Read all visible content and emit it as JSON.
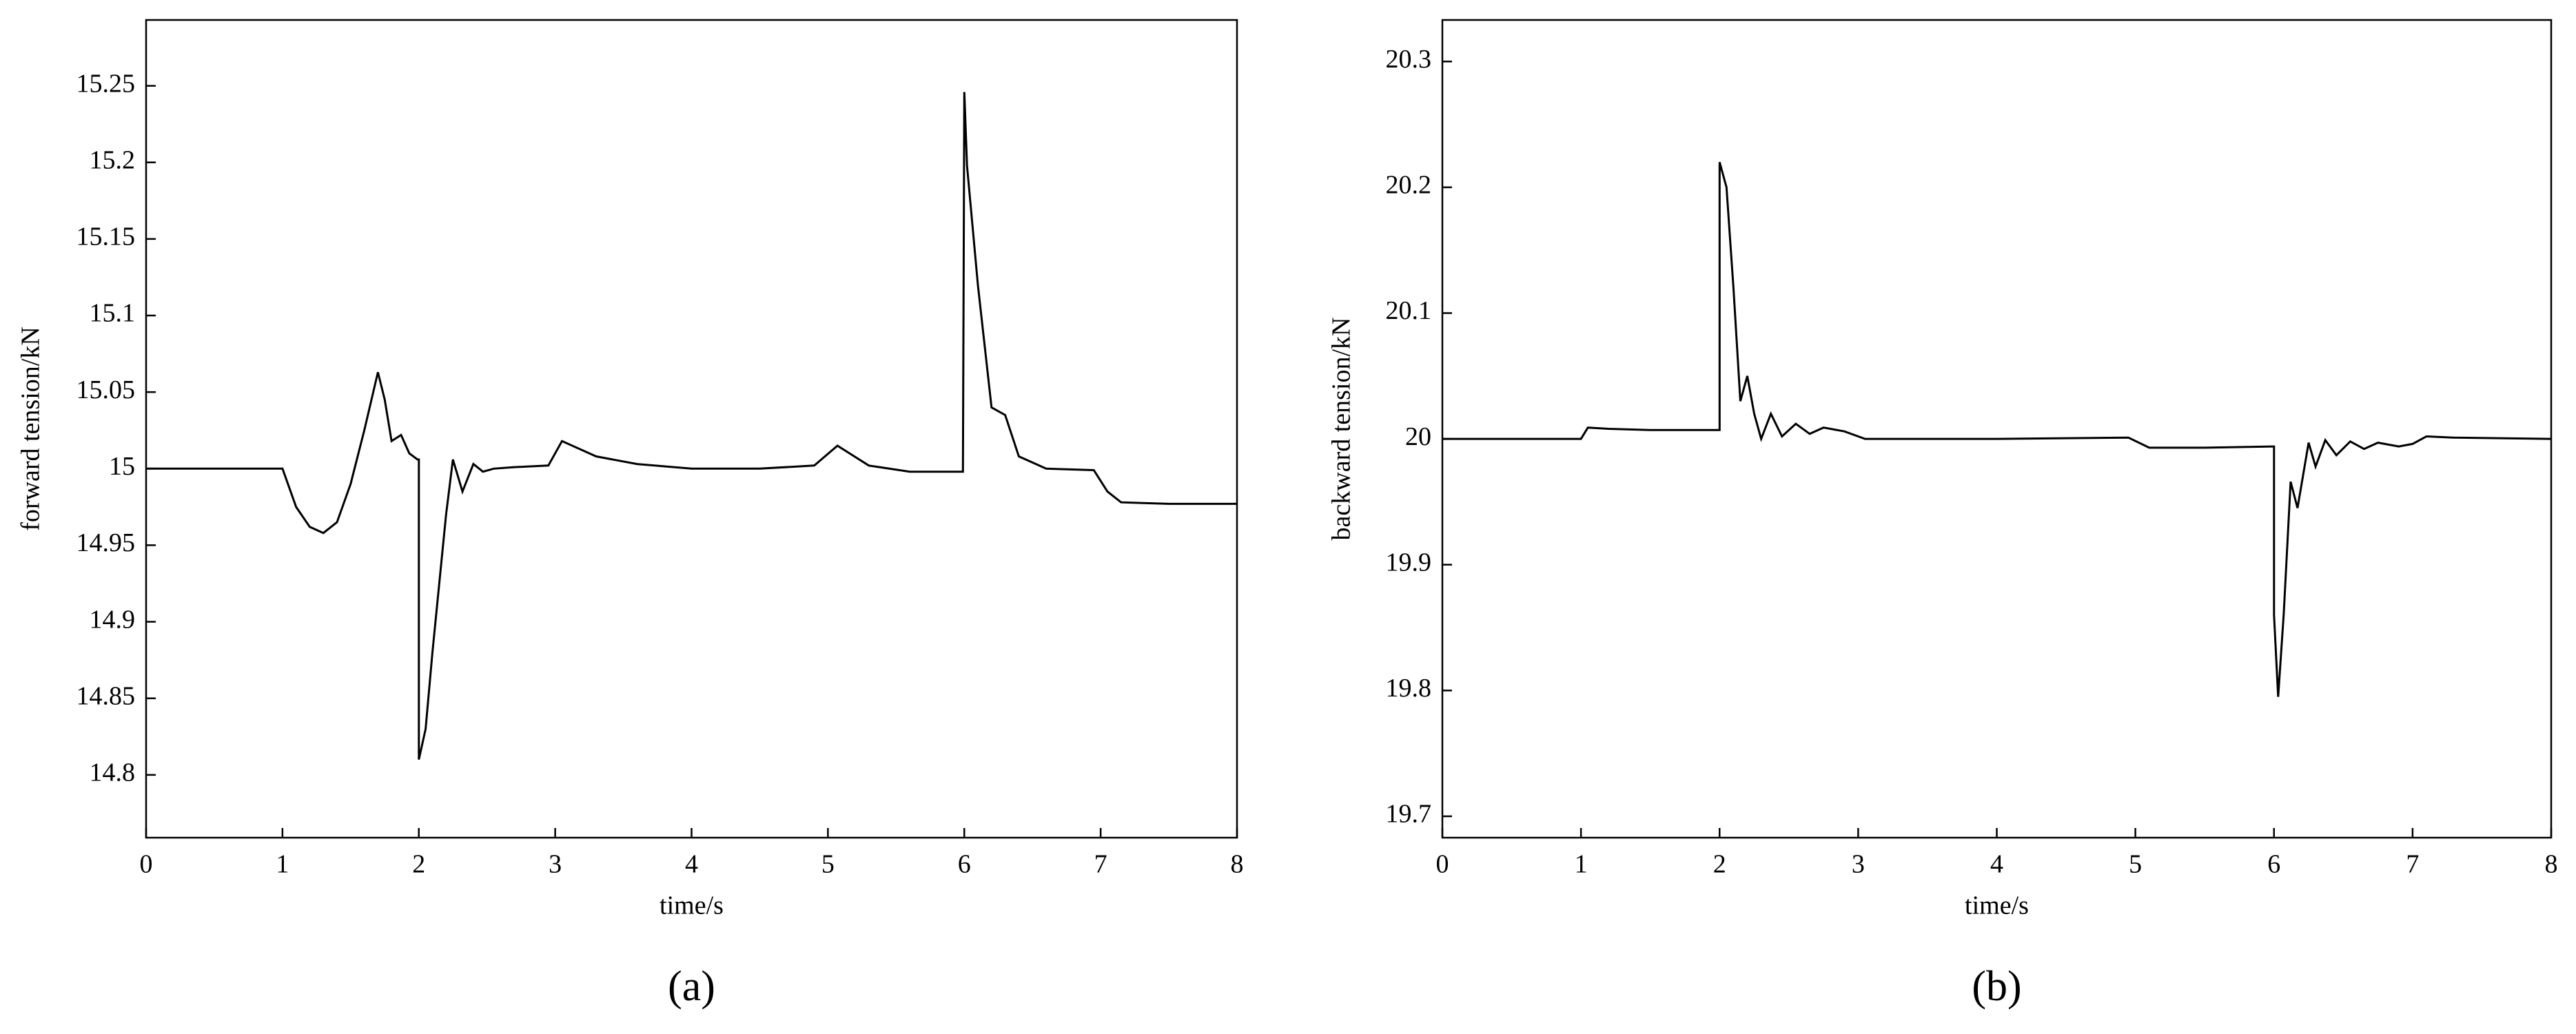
{
  "chart_data": [
    {
      "type": "line",
      "caption": "(a)",
      "xlabel": "time/s",
      "ylabel": "forward tension/kN",
      "color": "#000000",
      "xlim": [
        0,
        8
      ],
      "xticks": [
        0,
        1,
        2,
        3,
        4,
        5,
        6,
        7,
        8
      ],
      "ylim": [
        14.759,
        15.293
      ],
      "yticks": [
        14.8,
        14.85,
        14.9,
        14.95,
        15,
        15.05,
        15.1,
        15.15,
        15.2,
        15.25
      ],
      "x": [
        0,
        1,
        1.1,
        1.2,
        1.3,
        1.4,
        1.5,
        1.6,
        1.7,
        1.75,
        1.8,
        1.87,
        1.93,
        1.99,
        2.0,
        2.0,
        2.05,
        2.1,
        2.2,
        2.25,
        2.32,
        2.4,
        2.47,
        2.55,
        2.7,
        2.95,
        3.05,
        3.3,
        3.6,
        4,
        4.5,
        4.9,
        5.07,
        5.3,
        5.6,
        5.99,
        6.0,
        6.02,
        6.1,
        6.2,
        6.3,
        6.4,
        6.6,
        6.95,
        7.05,
        7.15,
        7.5,
        8
      ],
      "values": [
        15,
        15,
        14.975,
        14.962,
        14.958,
        14.965,
        14.99,
        15.025,
        15.063,
        15.045,
        15.018,
        15.022,
        15.01,
        15.006,
        15.006,
        14.81,
        14.83,
        14.88,
        14.97,
        15.006,
        14.985,
        15.003,
        14.998,
        15.0,
        15.001,
        15.002,
        15.018,
        15.008,
        15.003,
        15.0,
        15.0,
        15.002,
        15.015,
        15.002,
        14.998,
        14.998,
        15.246,
        15.198,
        15.12,
        15.04,
        15.035,
        15.008,
        15.0,
        14.999,
        14.985,
        14.978,
        14.977,
        14.977
      ]
    },
    {
      "type": "line",
      "caption": "(b)",
      "xlabel": "time/s",
      "ylabel": "backward tension/kN",
      "color": "#000000",
      "xlim": [
        0,
        8
      ],
      "xticks": [
        0,
        1,
        2,
        3,
        4,
        5,
        6,
        7,
        8
      ],
      "ylim": [
        19.683,
        20.333
      ],
      "yticks": [
        19.7,
        19.8,
        19.9,
        20,
        20.1,
        20.2,
        20.3
      ],
      "x": [
        0,
        1,
        1.05,
        1.2,
        1.5,
        1.99,
        2.0,
        2.0,
        2.05,
        2.1,
        2.15,
        2.2,
        2.25,
        2.3,
        2.37,
        2.45,
        2.55,
        2.65,
        2.75,
        2.9,
        3.05,
        4,
        4.95,
        5.1,
        5.5,
        5.99,
        6.0,
        6.0,
        6.03,
        6.07,
        6.12,
        6.17,
        6.25,
        6.3,
        6.37,
        6.45,
        6.55,
        6.65,
        6.75,
        6.9,
        7.0,
        7.1,
        7.3,
        8
      ],
      "values": [
        20,
        20,
        20.009,
        20.008,
        20.007,
        20.007,
        20.007,
        20.22,
        20.2,
        20.12,
        20.03,
        20.05,
        20.02,
        20.0,
        20.02,
        20.002,
        20.012,
        20.004,
        20.009,
        20.006,
        20.0,
        20,
        20.001,
        19.993,
        19.993,
        19.994,
        19.994,
        19.86,
        19.795,
        19.86,
        19.966,
        19.945,
        19.997,
        19.978,
        19.999,
        19.987,
        19.998,
        19.992,
        19.997,
        19.994,
        19.996,
        20.002,
        20.001,
        20
      ]
    }
  ]
}
